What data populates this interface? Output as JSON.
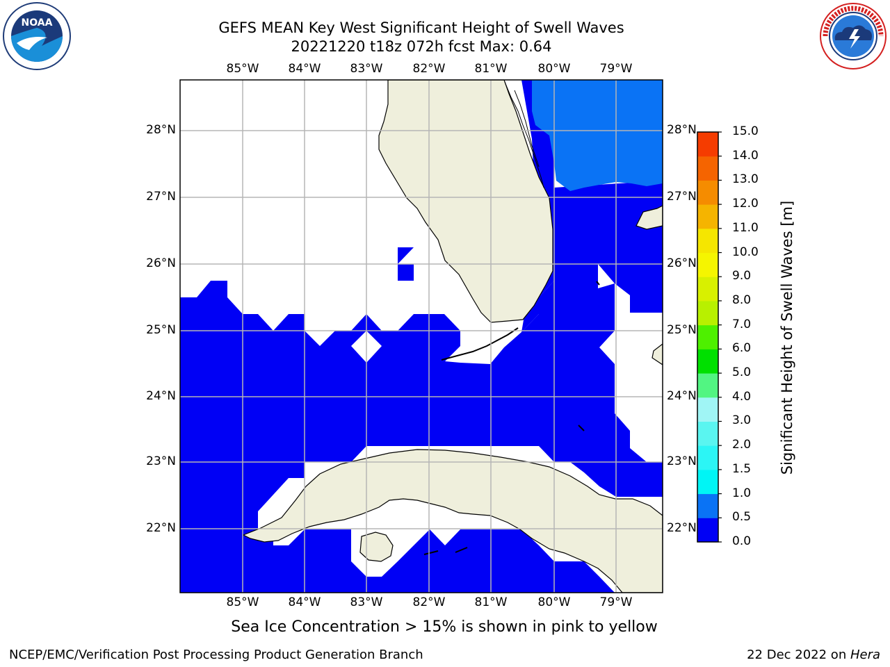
{
  "header": {
    "title_line1": "GEFS MEAN Key West Significant Height of Swell Waves",
    "title_line2": "20221220 t18z 072h fcst   Max: 0.64"
  },
  "logos": {
    "left_icon": "noaa-logo-icon",
    "right_icon": "nws-logo-icon",
    "nws_ring_text": "NATIONAL WEATHER SERVICE"
  },
  "map": {
    "lon_labels": [
      "85°W",
      "84°W",
      "83°W",
      "82°W",
      "81°W",
      "80°W",
      "79°W"
    ],
    "lat_labels": [
      "28°N",
      "27°N",
      "26°N",
      "25°N",
      "24°N",
      "23°N",
      "22°N"
    ],
    "colors": {
      "land": "#efefdc",
      "swell_low": "#0000f5",
      "swell_mid": "#0a73f5",
      "grid": "#b5b5b5",
      "coast": "#000000"
    }
  },
  "colorbar": {
    "label": "Significant Height of Swell Waves [m]",
    "ticks": [
      "0.0",
      "0.5",
      "1.0",
      "1.5",
      "2.0",
      "3.0",
      "4.0",
      "5.0",
      "6.0",
      "7.0",
      "8.0",
      "9.0",
      "10.0",
      "11.0",
      "12.0",
      "13.0",
      "14.0",
      "15.0"
    ],
    "colors": [
      "#0000f5",
      "#0a73f5",
      "#00f5f5",
      "#2cf5f5",
      "#5af5f0",
      "#a0f5f5",
      "#52f582",
      "#00e000",
      "#4ef000",
      "#b8f000",
      "#d8f000",
      "#f5f500",
      "#f5e600",
      "#f5b400",
      "#f58c00",
      "#f56400",
      "#f53c00",
      "#f50000"
    ]
  },
  "note": "Sea Ice Concentration > 15% is shown in pink to yellow",
  "footer": {
    "left": "NCEP/EMC/Verification Post Processing Product Generation Branch",
    "date": "22 Dec 2022 on ",
    "machine": "Hera"
  }
}
